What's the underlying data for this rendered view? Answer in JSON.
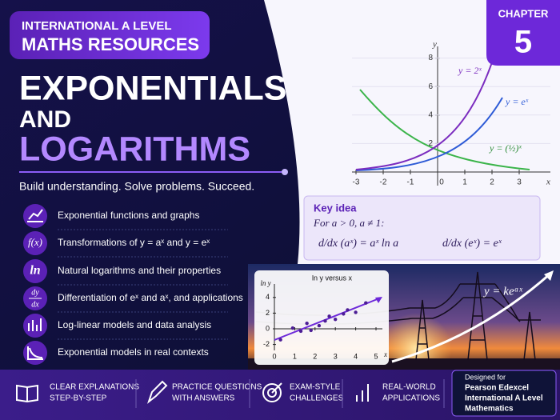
{
  "header": {
    "badge_line1": "INTERNATIONAL A LEVEL",
    "badge_line2": "MATHS RESOURCES",
    "chapter_label": "CHAPTER",
    "chapter_number": "5"
  },
  "title": {
    "line1": "EXPONENTIALS",
    "line2": "AND",
    "line3": "LOGARITHMS"
  },
  "tagline": "Build understanding. Solve problems. Succeed.",
  "topics": [
    "Exponential functions and graphs",
    "Transformations of y = aˣ and y = eˣ",
    "Natural logarithms and their properties",
    "Differentiation of eˣ and aˣ, and applications",
    "Log-linear models and data analysis",
    "Exponential models in real contexts"
  ],
  "icon_labels": {
    "fx": "f(x)",
    "ln": "ln",
    "dy": "dy",
    "dx": "dx"
  },
  "graph": {
    "x_label": "x",
    "y_label": "y",
    "xticks": [
      -3,
      -2,
      -1,
      0,
      1,
      2,
      3
    ],
    "yticks": [
      2,
      4,
      6,
      8
    ],
    "curve_labels": [
      "y = 2ˣ",
      "y = eˣ",
      "y = (½)ˣ"
    ]
  },
  "key_idea": {
    "heading": "Key idea",
    "condition": "For a > 0, a ≠ 1:",
    "formula1": "d/dx (aˣ) = aˣ ln a",
    "formula2": "d/dx (eˣ) = eˣ"
  },
  "scatter": {
    "title": "ln y versus x",
    "y_label": "ln y",
    "x_label": "x",
    "xticks": [
      0,
      1,
      2,
      3,
      4,
      5
    ],
    "yticks": [
      -2,
      0,
      2,
      4
    ],
    "x": [
      0.3,
      0.9,
      1.3,
      1.6,
      1.8,
      2.2,
      2.5,
      2.7,
      3.0,
      3.4,
      3.6,
      4.0,
      4.5
    ],
    "y": [
      -1.4,
      0.1,
      -0.3,
      0.7,
      -0.2,
      0.4,
      1.0,
      1.6,
      1.2,
      1.9,
      2.4,
      2.1,
      3.3
    ]
  },
  "model_label": "y = keᵃˣ",
  "features": [
    [
      "CLEAR EXPLANATIONS",
      "STEP-BY-STEP"
    ],
    [
      "PRACTICE QUESTIONS",
      "WITH ANSWERS"
    ],
    [
      "EXAM-STYLE",
      "CHALLENGES"
    ],
    [
      "REAL-WORLD",
      "APPLICATIONS"
    ]
  ],
  "designed_for": [
    "Designed for",
    "Pearson Edexcel",
    "International A Level",
    "Mathematics"
  ]
}
